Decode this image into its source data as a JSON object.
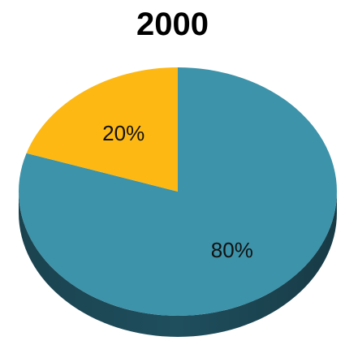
{
  "chart_data": {
    "type": "pie",
    "style": "3d",
    "title": "2000",
    "categories": [
      "",
      ""
    ],
    "values": [
      80,
      20
    ],
    "labels": [
      "80%",
      "20%"
    ],
    "colors": [
      "#3D93A9",
      "#FDB813"
    ],
    "side_colors": [
      "#1F4E5D",
      "#B07F07"
    ],
    "legend": false
  }
}
